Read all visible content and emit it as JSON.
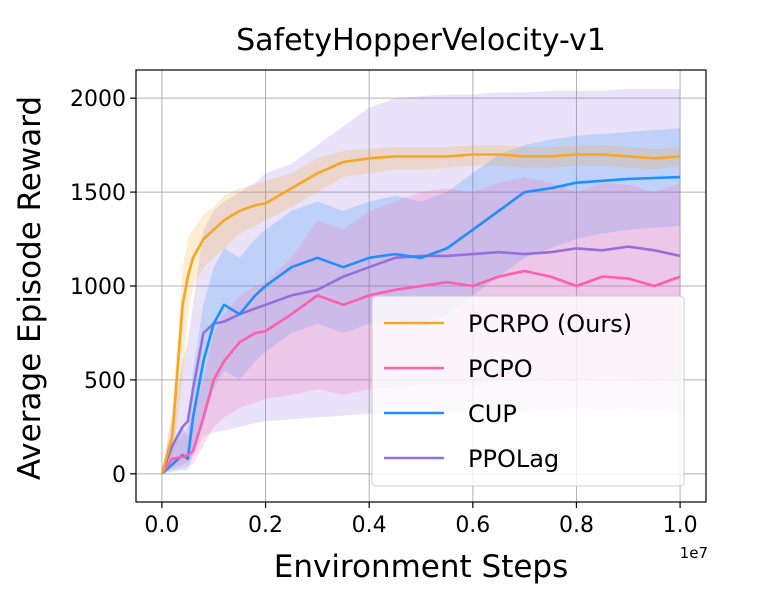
{
  "chart_data": {
    "type": "line",
    "title": "SafetyHopperVelocity-v1",
    "xlabel": "Environment Steps",
    "ylabel": "Average Episode Reward",
    "x_offset_label": "1e7",
    "xlim": [
      -0.05,
      1.05
    ],
    "ylim": [
      -150,
      2150
    ],
    "xticks": [
      0.0,
      0.2,
      0.4,
      0.6,
      0.8,
      1.0
    ],
    "xtick_labels": [
      "0.0",
      "0.2",
      "0.4",
      "0.6",
      "0.8",
      "1.0"
    ],
    "yticks": [
      0,
      500,
      1000,
      1500,
      2000
    ],
    "ytick_labels": [
      "0",
      "500",
      "1000",
      "1500",
      "2000"
    ],
    "grid": true,
    "legend_position": "lower-right",
    "x": [
      0.0,
      0.02,
      0.04,
      0.05,
      0.06,
      0.08,
      0.1,
      0.12,
      0.15,
      0.18,
      0.2,
      0.25,
      0.3,
      0.35,
      0.4,
      0.45,
      0.5,
      0.55,
      0.6,
      0.65,
      0.7,
      0.75,
      0.8,
      0.85,
      0.9,
      0.95,
      1.0
    ],
    "series": [
      {
        "name": "PCRPO (Ours)",
        "color": "#f5a623",
        "values": [
          0,
          200,
          900,
          1050,
          1150,
          1250,
          1300,
          1350,
          1400,
          1430,
          1440,
          1520,
          1600,
          1660,
          1680,
          1690,
          1690,
          1690,
          1700,
          1700,
          1690,
          1690,
          1700,
          1700,
          1690,
          1680,
          1690
        ],
        "lower": [
          0,
          80,
          500,
          850,
          1000,
          1100,
          1150,
          1200,
          1280,
          1320,
          1350,
          1420,
          1500,
          1580,
          1600,
          1620,
          1620,
          1630,
          1640,
          1640,
          1630,
          1630,
          1640,
          1640,
          1630,
          1620,
          1640
        ],
        "upper": [
          0,
          350,
          1100,
          1250,
          1300,
          1380,
          1420,
          1480,
          1520,
          1540,
          1560,
          1600,
          1680,
          1720,
          1730,
          1740,
          1740,
          1740,
          1750,
          1750,
          1740,
          1740,
          1750,
          1750,
          1740,
          1730,
          1740
        ]
      },
      {
        "name": "PCPO",
        "color": "#ff5eac",
        "values": [
          0,
          80,
          90,
          100,
          120,
          300,
          500,
          600,
          700,
          750,
          760,
          850,
          950,
          900,
          950,
          980,
          1000,
          1020,
          1000,
          1050,
          1080,
          1050,
          1000,
          1050,
          1040,
          1000,
          1050
        ],
        "lower": [
          0,
          20,
          30,
          40,
          50,
          150,
          250,
          300,
          350,
          380,
          400,
          420,
          450,
          420,
          450,
          460,
          470,
          480,
          470,
          500,
          510,
          500,
          490,
          520,
          510,
          500,
          520
        ],
        "upper": [
          0,
          150,
          200,
          250,
          300,
          500,
          750,
          850,
          950,
          1000,
          1020,
          1150,
          1350,
          1300,
          1400,
          1450,
          1500,
          1520,
          1500,
          1550,
          1580,
          1550,
          1500,
          1550,
          1540,
          1500,
          1550
        ]
      },
      {
        "name": "CUP",
        "color": "#1e8fff",
        "values": [
          0,
          50,
          100,
          80,
          300,
          600,
          800,
          900,
          850,
          950,
          1000,
          1100,
          1150,
          1100,
          1150,
          1170,
          1150,
          1200,
          1300,
          1400,
          1500,
          1520,
          1550,
          1560,
          1570,
          1575,
          1580
        ],
        "lower": [
          0,
          10,
          20,
          20,
          100,
          300,
          450,
          550,
          500,
          600,
          650,
          750,
          800,
          750,
          800,
          820,
          800,
          850,
          950,
          1050,
          1150,
          1200,
          1250,
          1280,
          1300,
          1310,
          1320
        ],
        "upper": [
          0,
          150,
          250,
          200,
          550,
          900,
          1100,
          1200,
          1150,
          1250,
          1300,
          1400,
          1450,
          1400,
          1450,
          1480,
          1450,
          1500,
          1600,
          1700,
          1750,
          1780,
          1800,
          1810,
          1820,
          1830,
          1840
        ]
      },
      {
        "name": "PPOLag",
        "color": "#9370db",
        "values": [
          0,
          150,
          250,
          280,
          450,
          750,
          800,
          810,
          850,
          880,
          900,
          950,
          980,
          1050,
          1100,
          1150,
          1160,
          1160,
          1170,
          1180,
          1170,
          1180,
          1200,
          1190,
          1210,
          1190,
          1160
        ],
        "lower": [
          0,
          30,
          50,
          60,
          100,
          200,
          220,
          230,
          250,
          270,
          280,
          290,
          300,
          310,
          320,
          320,
          330,
          330,
          330,
          340,
          330,
          340,
          350,
          340,
          350,
          340,
          330
        ],
        "upper": [
          0,
          300,
          600,
          700,
          900,
          1300,
          1400,
          1450,
          1500,
          1550,
          1600,
          1650,
          1750,
          1850,
          1950,
          2000,
          2010,
          2020,
          2020,
          2030,
          2030,
          2040,
          2040,
          2040,
          2050,
          2050,
          2050
        ]
      }
    ]
  }
}
